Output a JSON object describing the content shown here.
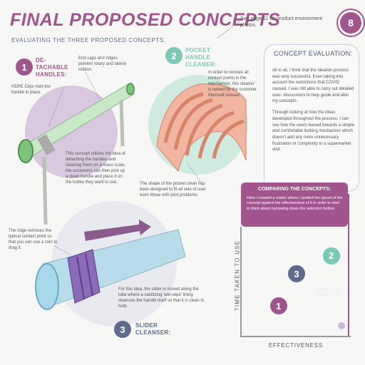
{
  "header": {
    "title": "FINAL PROPOSED CONCEPTS",
    "subtitle": "EVALUATING THE THREE PROPOSED CONCEPTS.",
    "page_note": "See page 11 for product environment photos.",
    "page_number": "8"
  },
  "concept1": {
    "number": "1",
    "label": "DE-TACHABLE HANDLES:",
    "note_end_caps": "End caps and ridges prevent rotary and lateral motion.",
    "note_clips": "HDPE Clips hold the handle in place.",
    "description": "This concept utilizes the idea of detaching the handles and cleaning them on a mass scale, the customers can then pick up a clean handle and place it on the trolley they want to use."
  },
  "concept2": {
    "number": "2",
    "label": "POCKET HANDLE CLEANER:",
    "note_mechanism": "In order to remove all contact points in the mechanism, this cleaner is owned by the customer themself instead.",
    "note_shape": "The shape of the pocket clean has been designed to fit all sets of user even those with joint problems."
  },
  "concept3": {
    "number": "3",
    "label": "SLIDER CLEANSER:",
    "note_ridge": "The ridge removes the typical contact point so that you can use a coin to drag it.",
    "description": "For this idea, the slider is moved along the tube where a sanitizing 'wet-wipe' lining cleanses the handle itself so that it is clean to hold."
  },
  "evaluation": {
    "title": "CONCEPT EVALUATION:",
    "paragraph1": "All in all, I think that the ideation process was very successful. Even taking into account the restrictions that COVID caused, I was still able to carry out detailed user- discussions to help guide and alter my concepts.",
    "paragraph2": "Through looking at how the ideas developed throughout the process, I can see how the users leaned towards a simple and comfortable looking mechanism which doesn't add any more unnecessary frustration or complexity to a supermarket visit."
  },
  "comparison": {
    "title": "COMPARING THE CONCEPTS:",
    "text": "Here I created a matrix where I plotted the speed of the concept against the effectiveness of it in order to start to think about narrowing down the selection further.",
    "y_label": "TIME TAKEN TO USE",
    "x_label": "EFFECTIVENESS",
    "perfect_label": "'Perfect' Product Position Here",
    "points": [
      {
        "name": "1",
        "effectiveness": 0.35,
        "time": 0.28,
        "color": "#a0558f"
      },
      {
        "name": "2",
        "effectiveness": 0.85,
        "time": 0.75,
        "color": "#7bc8b4"
      },
      {
        "name": "3",
        "effectiveness": 0.52,
        "time": 0.58,
        "color": "#5f6b8a"
      }
    ]
  },
  "colors": {
    "accent": "#a0558f",
    "teal": "#7bc8b4",
    "navy": "#5f6b8a"
  }
}
